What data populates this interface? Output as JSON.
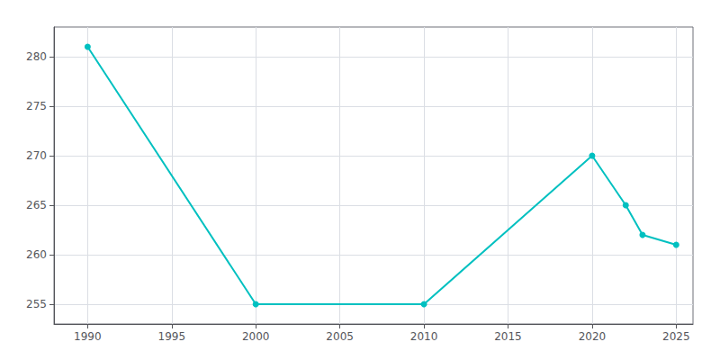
{
  "chart_data": {
    "type": "line",
    "x": [
      1990,
      2000,
      2010,
      2020,
      2022,
      2023,
      2025
    ],
    "values": [
      281,
      255,
      255,
      270,
      265,
      262,
      261
    ],
    "color": "#00C0C0",
    "marker": "circle",
    "xlim": [
      1988,
      2026
    ],
    "ylim": [
      253,
      283
    ],
    "xticks": [
      1990,
      1995,
      2000,
      2005,
      2010,
      2015,
      2020,
      2025
    ],
    "yticks": [
      255,
      260,
      265,
      270,
      275,
      280
    ],
    "grid": true
  }
}
